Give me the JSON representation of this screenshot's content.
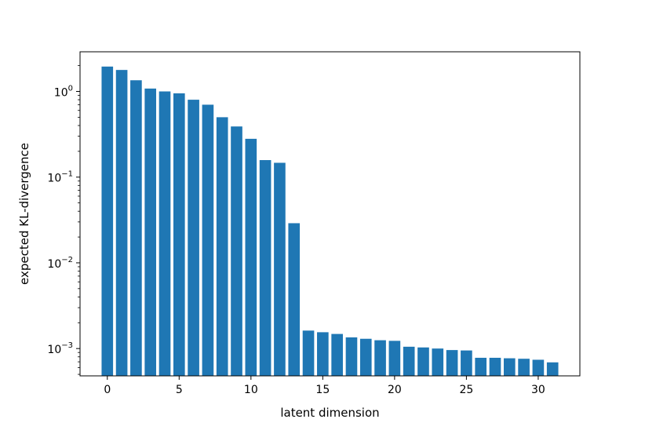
{
  "chart_data": {
    "type": "bar",
    "title": "",
    "xlabel": "latent dimension",
    "ylabel": "expected KL-divergence",
    "yscale": "log",
    "color": "#1f77b4",
    "grid": false,
    "x": [
      0,
      1,
      2,
      3,
      4,
      5,
      6,
      7,
      8,
      9,
      10,
      11,
      12,
      13,
      14,
      15,
      16,
      17,
      18,
      19,
      20,
      21,
      22,
      23,
      24,
      25,
      26,
      27,
      28,
      29,
      30,
      31
    ],
    "values": [
      1.95,
      1.78,
      1.35,
      1.08,
      1.0,
      0.95,
      0.8,
      0.7,
      0.5,
      0.39,
      0.28,
      0.158,
      0.147,
      0.029,
      0.00162,
      0.00155,
      0.00148,
      0.00135,
      0.0013,
      0.00125,
      0.00123,
      0.00105,
      0.00103,
      0.001,
      0.00096,
      0.00095,
      0.00078,
      0.00078,
      0.00077,
      0.00076,
      0.00074,
      0.00069
    ],
    "xlim": [
      -1.9,
      32.9
    ],
    "ylim": [
      0.00048,
      2.9
    ],
    "xticks": [
      0,
      5,
      10,
      15,
      20,
      25,
      30
    ],
    "yticks": [
      {
        "value": 1,
        "base": "10",
        "exp": "0"
      },
      {
        "value": 0.1,
        "base": "10",
        "exp": "−1"
      },
      {
        "value": 0.01,
        "base": "10",
        "exp": "−2"
      },
      {
        "value": 0.001,
        "base": "10",
        "exp": "−3"
      }
    ]
  }
}
